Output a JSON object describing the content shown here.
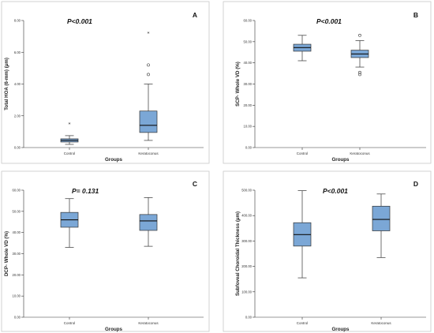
{
  "colors": {
    "box_fill": "#7ba7d6",
    "frame": "#c8c8c8",
    "axis": "#333333"
  },
  "chart_data": [
    {
      "type": "box",
      "panel_label": "A",
      "annotation": "P<0.001",
      "xlabel": "Groups",
      "ylabel": "Total HOA (6-mm) (µm)",
      "ylim": [
        0,
        8
      ],
      "yticks": [
        0,
        2,
        4,
        6,
        8
      ],
      "ytick_labels": [
        "0.00",
        "2.00",
        "4.00",
        "6.00",
        "8.00"
      ],
      "categories": [
        "Control",
        "Keratoconus"
      ],
      "boxes": [
        {
          "q1": 0.35,
          "median": 0.45,
          "q3": 0.55,
          "whisker_low": 0.2,
          "whisker_high": 0.75,
          "outliers": [],
          "extremes": [
            1.5
          ]
        },
        {
          "q1": 0.95,
          "median": 1.4,
          "q3": 2.3,
          "whisker_low": 0.45,
          "whisker_high": 4.0,
          "outliers": [
            4.6,
            5.2
          ],
          "extremes": [
            7.2
          ]
        }
      ]
    },
    {
      "type": "box",
      "panel_label": "B",
      "annotation": "P<0.001",
      "xlabel": "Groups",
      "ylabel": "SCP- Whole VD (%)",
      "ylim": [
        0,
        60
      ],
      "yticks": [
        0,
        10,
        20,
        30,
        40,
        50,
        60
      ],
      "ytick_labels": [
        "0.00",
        "10.00",
        "20.00",
        "30.00",
        "40.00",
        "50.00",
        "60.00"
      ],
      "categories": [
        "Control",
        "Keratoconus"
      ],
      "boxes": [
        {
          "q1": 45.5,
          "median": 47.2,
          "q3": 48.8,
          "whisker_low": 41.0,
          "whisker_high": 53.0,
          "outliers": [],
          "extremes": []
        },
        {
          "q1": 42.5,
          "median": 44.2,
          "q3": 46.0,
          "whisker_low": 38.0,
          "whisker_high": 50.5,
          "outliers": [
            35.5,
            34.5,
            53.0
          ],
          "extremes": []
        }
      ]
    },
    {
      "type": "box",
      "panel_label": "C",
      "annotation": "P= 0.131",
      "xlabel": "Groups",
      "ylabel": "DCP- Whole VD (%)",
      "ylim": [
        0,
        60
      ],
      "yticks": [
        0,
        10,
        20,
        30,
        40,
        50,
        60
      ],
      "ytick_labels": [
        "0.00",
        "10.00",
        "20.00",
        "30.00",
        "40.00",
        "50.00",
        "60.00"
      ],
      "categories": [
        "Control",
        "Keratoconus"
      ],
      "boxes": [
        {
          "q1": 42.5,
          "median": 46.0,
          "q3": 49.5,
          "whisker_low": 33.0,
          "whisker_high": 56.0,
          "outliers": [],
          "extremes": []
        },
        {
          "q1": 41.0,
          "median": 45.5,
          "q3": 48.5,
          "whisker_low": 33.5,
          "whisker_high": 56.5,
          "outliers": [],
          "extremes": []
        }
      ]
    },
    {
      "type": "box",
      "panel_label": "D",
      "annotation": "P<0.001",
      "xlabel": "Groups",
      "ylabel": "Subfoveal Choroidal Thickness (µm)",
      "ylim": [
        0,
        500
      ],
      "yticks": [
        0,
        100,
        200,
        300,
        400,
        500
      ],
      "ytick_labels": [
        "0.00",
        "100.00",
        "200.00",
        "300.00",
        "400.00",
        "500.00"
      ],
      "categories": [
        "Control",
        "Keratoconus"
      ],
      "boxes": [
        {
          "q1": 280,
          "median": 325,
          "q3": 372,
          "whisker_low": 155,
          "whisker_high": 498,
          "outliers": [],
          "extremes": []
        },
        {
          "q1": 340,
          "median": 385,
          "q3": 437,
          "whisker_low": 235,
          "whisker_high": 485,
          "outliers": [],
          "extremes": []
        }
      ]
    }
  ]
}
